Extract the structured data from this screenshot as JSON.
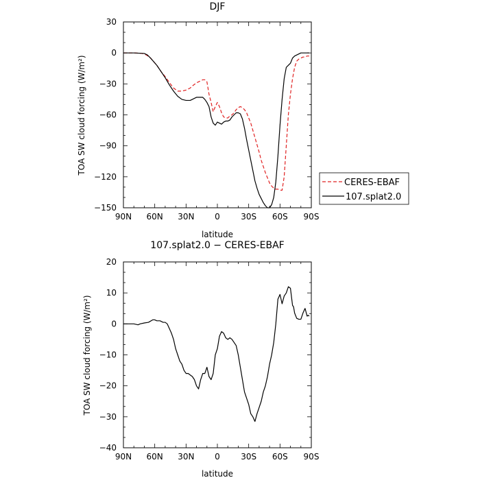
{
  "chart_data": [
    {
      "type": "line",
      "title": "DJF",
      "xlabel": "latitude",
      "ylabel": "TOA SW cloud forcing (W/m²)",
      "xlim": [
        90,
        -90
      ],
      "ylim": [
        -150,
        30
      ],
      "x_ticks": [
        90,
        60,
        30,
        0,
        -30,
        -60,
        -90
      ],
      "x_tick_labels": [
        "90N",
        "60N",
        "30N",
        "0",
        "30S",
        "60S",
        "90S"
      ],
      "y_ticks": [
        30,
        0,
        -30,
        -60,
        -90,
        -120,
        -150
      ],
      "y_tick_labels": [
        "30",
        "0",
        "−30",
        "−60",
        "−90",
        "−120",
        "−150"
      ],
      "legend": {
        "placement": "outside-right"
      },
      "series": [
        {
          "name": "CERES-EBAF",
          "color": "#e02020",
          "dash": "dashed",
          "x": [
            90,
            80,
            72,
            68,
            64,
            58,
            54,
            50,
            45,
            42,
            38,
            34,
            30,
            26,
            24,
            20,
            18,
            16,
            14,
            12,
            10,
            8,
            6,
            4,
            2,
            0,
            -2,
            -4,
            -6,
            -8,
            -10,
            -12,
            -14,
            -16,
            -18,
            -20,
            -22,
            -24,
            -26,
            -28,
            -30,
            -32,
            -34,
            -36,
            -38,
            -40,
            -42,
            -44,
            -46,
            -48,
            -50,
            -52,
            -54,
            -56,
            -58,
            -60,
            -62,
            -64,
            -66,
            -68,
            -70,
            -72,
            -74,
            -76,
            -78,
            -80,
            -82,
            -84,
            -86,
            -88
          ],
          "y": [
            0,
            0,
            -0.5,
            -2,
            -5,
            -12,
            -18,
            -23,
            -30,
            -34,
            -37,
            -37,
            -36,
            -34,
            -32,
            -29,
            -28,
            -27,
            -26,
            -26,
            -28,
            -40,
            -48,
            -57,
            -52,
            -48,
            -52,
            -58,
            -62,
            -63,
            -63,
            -61,
            -60,
            -58,
            -55,
            -53,
            -52,
            -53,
            -55,
            -58,
            -63,
            -68,
            -75,
            -82,
            -89,
            -96,
            -104,
            -110,
            -116,
            -121,
            -126,
            -129,
            -131,
            -132,
            -132,
            -133,
            -133,
            -120,
            -90,
            -60,
            -40,
            -25,
            -14,
            -8,
            -6,
            -5,
            -4,
            -4,
            -3,
            -3
          ]
        },
        {
          "name": "107.splat2.0",
          "color": "#000000",
          "dash": "solid",
          "x": [
            90,
            80,
            70,
            67,
            64,
            58,
            54,
            50,
            46,
            42,
            38,
            34,
            30,
            26,
            24,
            22,
            20,
            18,
            16,
            14,
            12,
            10,
            8,
            6,
            4,
            2,
            0,
            -2,
            -4,
            -6,
            -8,
            -10,
            -12,
            -14,
            -16,
            -18,
            -20,
            -22,
            -24,
            -26,
            -28,
            -30,
            -32,
            -34,
            -36,
            -38,
            -40,
            -42,
            -44,
            -46,
            -48,
            -50,
            -52,
            -54,
            -56,
            -58,
            -60,
            -62,
            -64,
            -66,
            -68,
            -70,
            -72,
            -74,
            -76,
            -78,
            -80,
            -84,
            -86,
            -88
          ],
          "y": [
            0,
            0,
            -0.5,
            -2,
            -5,
            -12,
            -18,
            -24,
            -31,
            -37,
            -42,
            -45,
            -46,
            -46,
            -45,
            -44,
            -43,
            -43,
            -43,
            -43,
            -45,
            -48,
            -52,
            -62,
            -68,
            -70,
            -67,
            -68,
            -69,
            -67,
            -66,
            -66,
            -65,
            -62,
            -60,
            -58,
            -58,
            -59,
            -64,
            -73,
            -84,
            -94,
            -104,
            -114,
            -124,
            -131,
            -137,
            -141,
            -145,
            -148,
            -150,
            -150,
            -147,
            -140,
            -125,
            -100,
            -70,
            -45,
            -25,
            -14,
            -12,
            -10,
            -5,
            -3,
            -2,
            -1,
            0,
            0,
            0,
            0
          ]
        }
      ]
    },
    {
      "type": "line",
      "title": "107.splat2.0 − CERES-EBAF",
      "xlabel": "latitude",
      "ylabel": "TOA SW cloud forcing (W/m²)",
      "xlim": [
        90,
        -90
      ],
      "ylim": [
        -40,
        20
      ],
      "x_ticks": [
        90,
        60,
        30,
        0,
        -30,
        -60,
        -90
      ],
      "x_tick_labels": [
        "90N",
        "60N",
        "30N",
        "0",
        "30S",
        "60S",
        "90S"
      ],
      "y_ticks": [
        20,
        10,
        0,
        -10,
        -20,
        -30,
        -40
      ],
      "y_tick_labels": [
        "20",
        "10",
        "0",
        "−10",
        "−20",
        "−30",
        "−40"
      ],
      "series": [
        {
          "color": "#000000",
          "dash": "solid",
          "x": [
            90,
            80,
            76,
            74,
            70,
            66,
            62,
            60,
            58,
            55,
            52,
            50,
            48,
            46,
            44,
            42,
            40,
            38,
            36,
            34,
            32,
            30,
            28,
            26,
            24,
            22,
            20,
            18,
            16,
            14,
            12,
            10,
            8,
            6,
            4,
            2,
            0,
            -2,
            -4,
            -6,
            -8,
            -10,
            -12,
            -14,
            -16,
            -18,
            -20,
            -22,
            -24,
            -26,
            -28,
            -30,
            -32,
            -34,
            -36,
            -38,
            -40,
            -42,
            -44,
            -46,
            -48,
            -50,
            -52,
            -54,
            -56,
            -58,
            -60,
            -62,
            -64,
            -66,
            -68,
            -70,
            -72,
            -73,
            -74,
            -76,
            -78,
            -80,
            -82,
            -84,
            -86,
            -87,
            -88
          ],
          "y": [
            0,
            0,
            -0.3,
            0,
            0.3,
            0.5,
            1.3,
            1.3,
            1.0,
            1.0,
            0.5,
            0.5,
            0,
            -1.5,
            -3,
            -5,
            -8,
            -10,
            -12,
            -13,
            -15,
            -16,
            -16,
            -16.5,
            -17,
            -18,
            -20,
            -21,
            -18,
            -16,
            -16,
            -14,
            -17,
            -18,
            -16,
            -10,
            -8,
            -4,
            -2.5,
            -3,
            -4.5,
            -5,
            -4.5,
            -5,
            -6,
            -7,
            -10,
            -14,
            -18,
            -22,
            -24,
            -26,
            -29,
            -30,
            -31.5,
            -29,
            -27,
            -25,
            -22,
            -20,
            -17,
            -13,
            -10,
            -6,
            0,
            8,
            9.5,
            6.5,
            9,
            10,
            12,
            11.5,
            6,
            5.5,
            3.5,
            1.8,
            1.5,
            1.5,
            3.5,
            5,
            2.5,
            2.8,
            2.5
          ]
        }
      ]
    }
  ]
}
